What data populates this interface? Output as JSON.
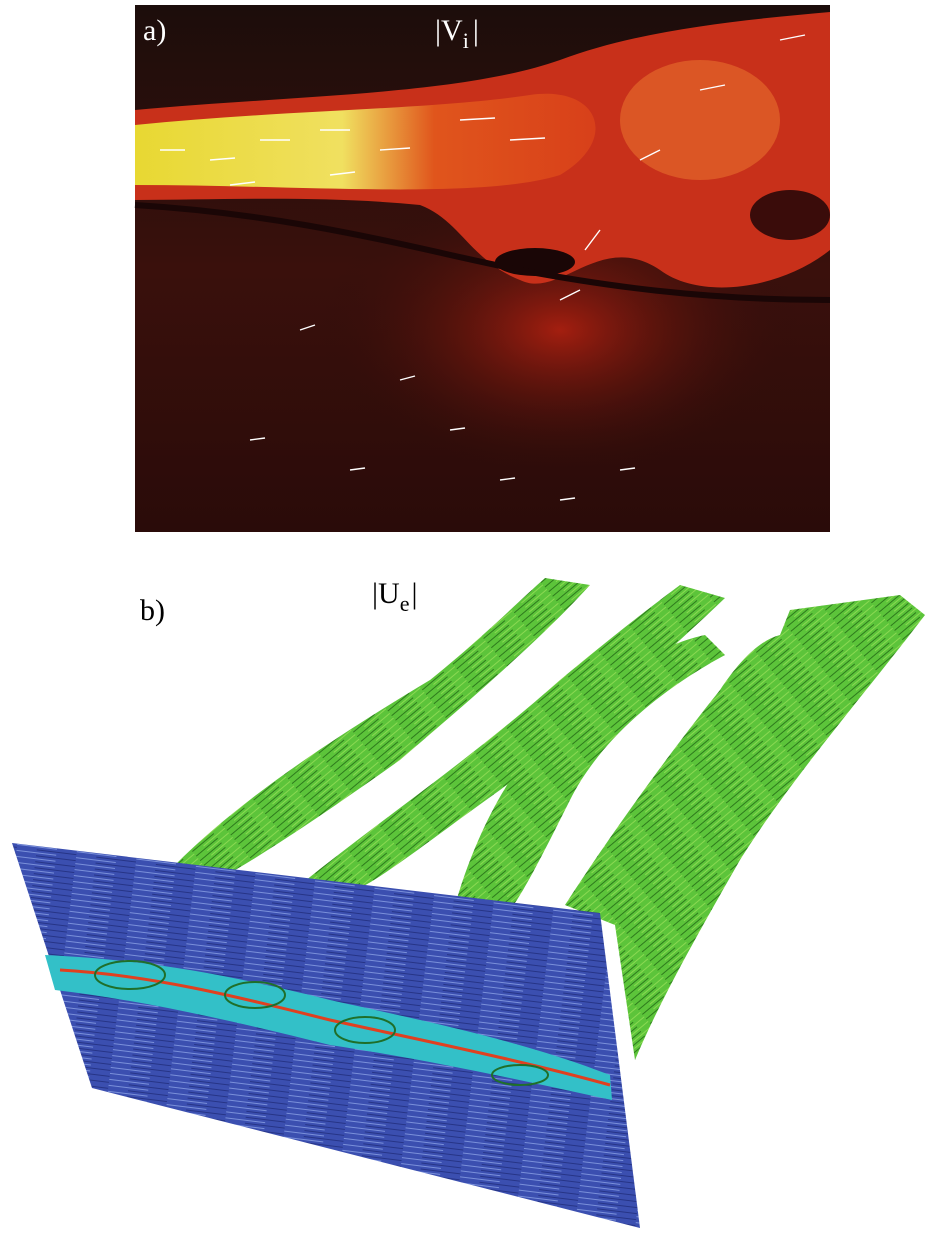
{
  "panel_a": {
    "label": "a)",
    "quantity": {
      "delimiter": "|",
      "symbol": "V",
      "subscript": "i"
    }
  },
  "panel_b": {
    "label": "b)",
    "quantity": {
      "delimiter": "|",
      "symbol": "U",
      "subscript": "e"
    }
  }
}
